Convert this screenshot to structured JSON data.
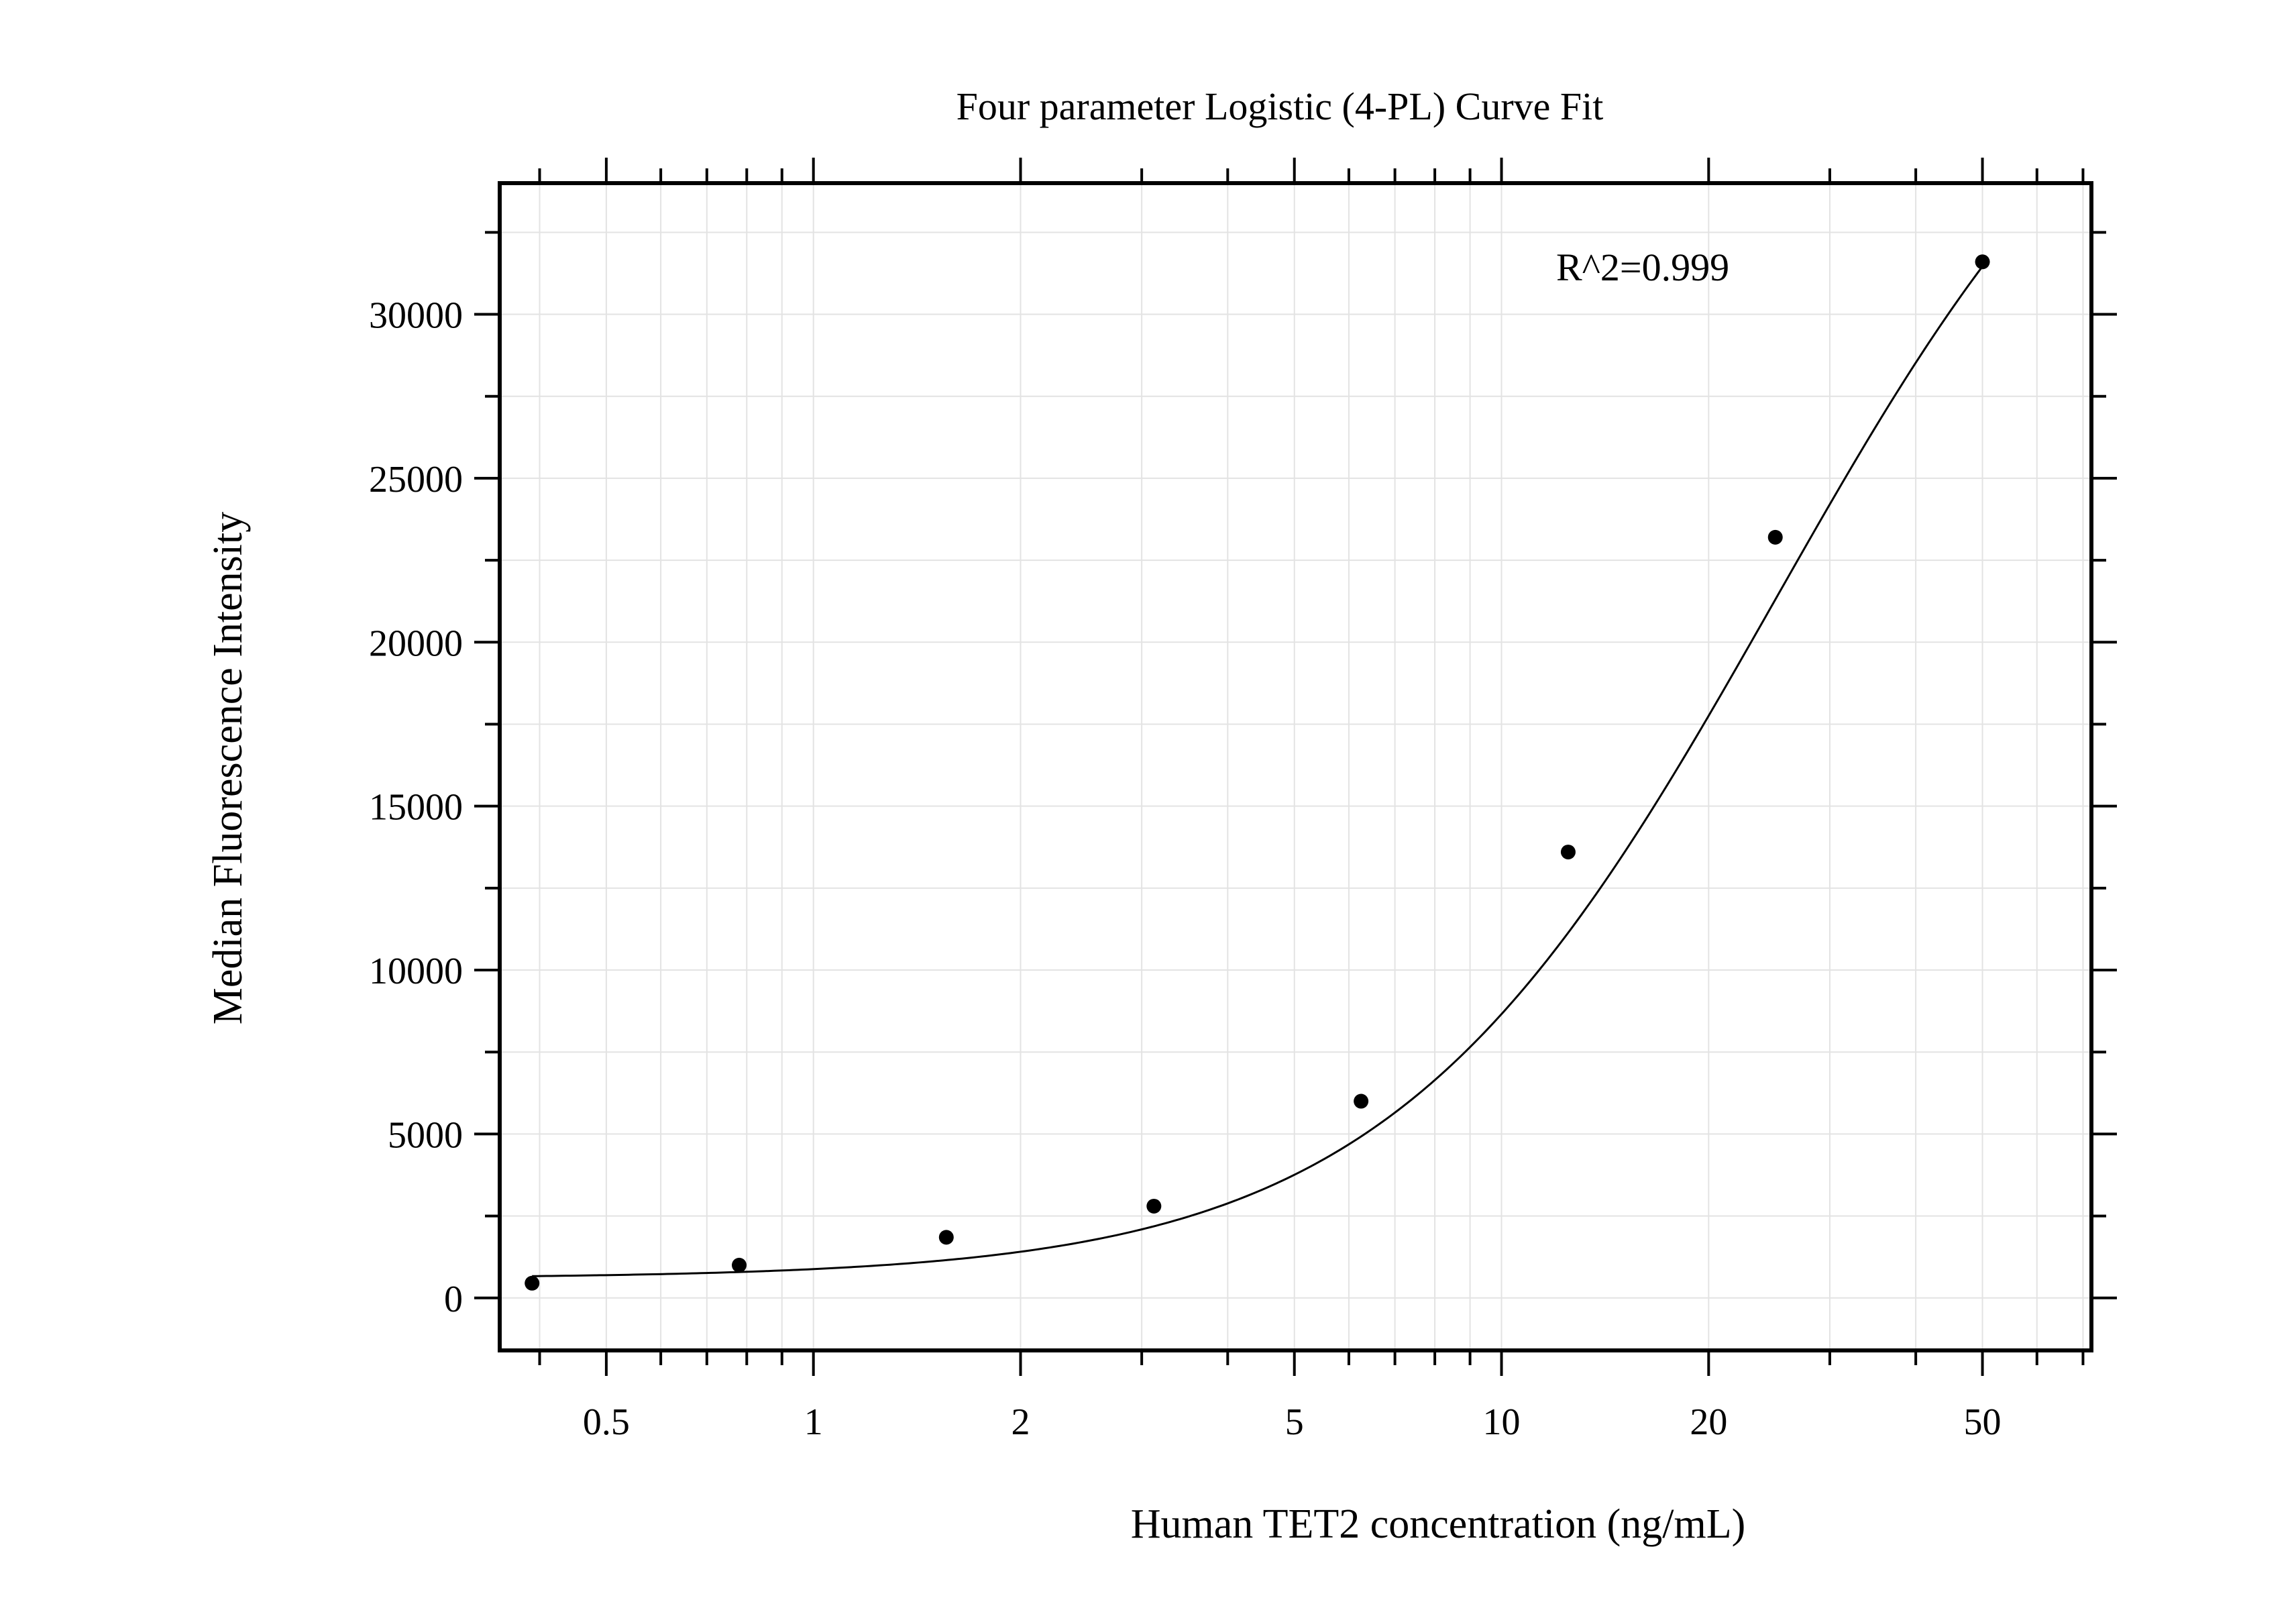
{
  "chart_data": {
    "type": "scatter",
    "title": "Four parameter Logistic (4-PL) Curve Fit",
    "xlabel": "Human TET2 concentration (ng/mL)",
    "ylabel": "Median Fluorescence Intensity",
    "x_scale": "log",
    "xlim": [
      0.35,
      72
    ],
    "ylim": [
      -1600,
      34000
    ],
    "x_ticks": [
      {
        "value": 0.5,
        "label": "0.5"
      },
      {
        "value": 1,
        "label": "1"
      },
      {
        "value": 2,
        "label": "2"
      },
      {
        "value": 5,
        "label": "5"
      },
      {
        "value": 10,
        "label": "10"
      },
      {
        "value": 20,
        "label": "20"
      },
      {
        "value": 50,
        "label": "50"
      }
    ],
    "y_ticks": [
      {
        "value": 0,
        "label": "0"
      },
      {
        "value": 5000,
        "label": "5000"
      },
      {
        "value": 10000,
        "label": "10000"
      },
      {
        "value": 15000,
        "label": "15000"
      },
      {
        "value": 20000,
        "label": "20000"
      },
      {
        "value": 25000,
        "label": "25000"
      },
      {
        "value": 30000,
        "label": "30000"
      }
    ],
    "grid": true,
    "annotation": "R^2=0.999",
    "points": [
      {
        "x": 0.39,
        "y": 450
      },
      {
        "x": 0.78,
        "y": 1000
      },
      {
        "x": 1.56,
        "y": 1850
      },
      {
        "x": 3.125,
        "y": 2800
      },
      {
        "x": 6.25,
        "y": 6000
      },
      {
        "x": 12.5,
        "y": 13600
      },
      {
        "x": 25,
        "y": 23200
      },
      {
        "x": 50,
        "y": 31600
      }
    ],
    "fit": {
      "model": "4PL",
      "A": 600,
      "D": 42000,
      "C": 25,
      "B": 1.55,
      "x_range": [
        0.39,
        50
      ]
    },
    "colors": {
      "axis": "#000000",
      "grid": "#e3e3e3",
      "points": "#000000",
      "curve": "#000000"
    }
  }
}
